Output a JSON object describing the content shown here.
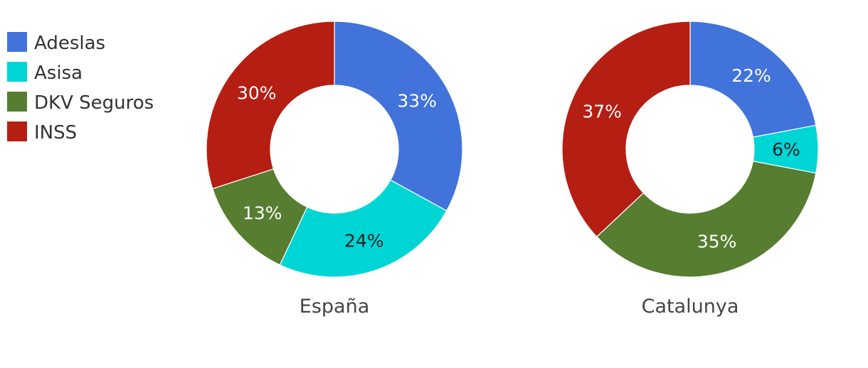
{
  "chart_data": {
    "type": "pie",
    "style": "donut",
    "legend": {
      "position": "top-left",
      "entries": [
        {
          "label": "Adeslas",
          "color": "#4173DA"
        },
        {
          "label": "Asisa",
          "color": "#00D5D6"
        },
        {
          "label": "DKV Seguros",
          "color": "#567D30"
        },
        {
          "label": "INSS",
          "color": "#B51E12"
        }
      ]
    },
    "charts": [
      {
        "title": "España",
        "slices": [
          {
            "label": "Adeslas",
            "value": 33,
            "display": "33%",
            "color": "#4173DA",
            "text_color": "#ffffff"
          },
          {
            "label": "Asisa",
            "value": 24,
            "display": "24%",
            "color": "#00D5D6",
            "text_color": "#222222"
          },
          {
            "label": "DKV Seguros",
            "value": 13,
            "display": "13%",
            "color": "#567D30",
            "text_color": "#ffffff"
          },
          {
            "label": "INSS",
            "value": 30,
            "display": "30%",
            "color": "#B51E12",
            "text_color": "#ffffff"
          }
        ]
      },
      {
        "title": "Catalunya",
        "slices": [
          {
            "label": "Adeslas",
            "value": 22,
            "display": "22%",
            "color": "#4173DA",
            "text_color": "#ffffff"
          },
          {
            "label": "Asisa",
            "value": 6,
            "display": "6%",
            "color": "#00D5D6",
            "text_color": "#222222"
          },
          {
            "label": "DKV Seguros",
            "value": 35,
            "display": "35%",
            "color": "#567D30",
            "text_color": "#ffffff"
          },
          {
            "label": "INSS",
            "value": 37,
            "display": "37%",
            "color": "#B51E12",
            "text_color": "#ffffff"
          }
        ]
      }
    ]
  }
}
